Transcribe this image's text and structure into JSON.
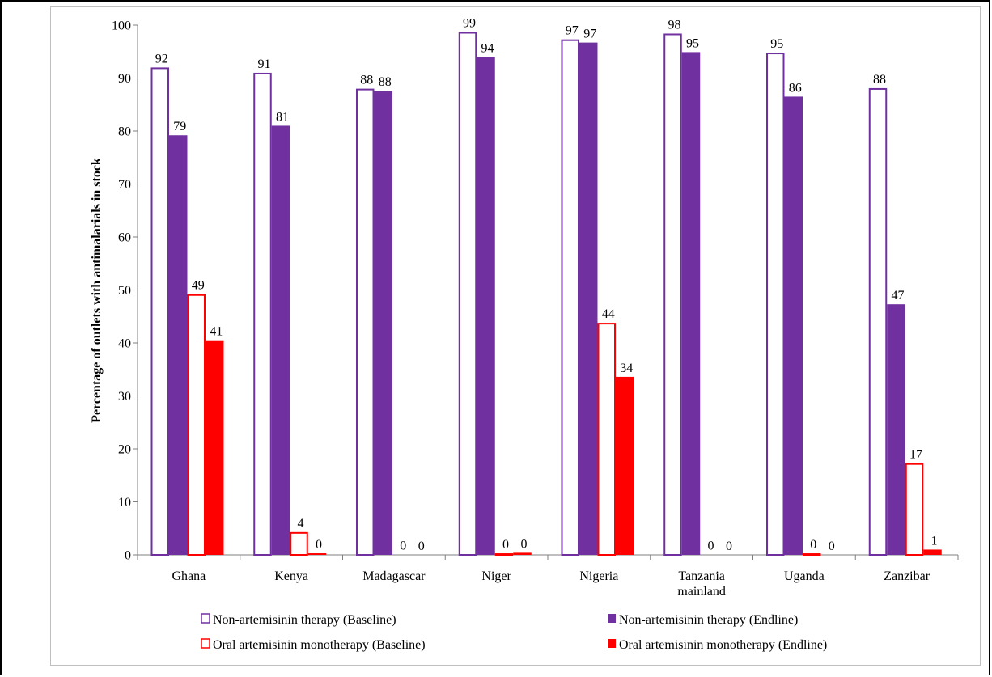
{
  "chart_data": {
    "type": "bar",
    "ylabel": "Percentage of outlets with antimalarials  in stock",
    "xlabel": "",
    "ylim": [
      0,
      100
    ],
    "yticks": [
      0,
      10,
      20,
      30,
      40,
      50,
      60,
      70,
      80,
      90,
      100
    ],
    "categories": [
      [
        "Ghana"
      ],
      [
        "Kenya"
      ],
      [
        "Madagascar"
      ],
      [
        "Niger"
      ],
      [
        "Nigeria"
      ],
      [
        "Tanzania",
        "mainland"
      ],
      [
        "Uganda"
      ],
      [
        "Zanzibar"
      ]
    ],
    "series": [
      {
        "name": "Non-artemisinin therapy (Baseline)",
        "style": "outline",
        "color": "#7030a0",
        "values": [
          92,
          91,
          88,
          98.7,
          97.3,
          98.4,
          94.8,
          88.1
        ],
        "labels": [
          "92",
          "91",
          "88",
          "99",
          "97",
          "98",
          "95",
          "88"
        ]
      },
      {
        "name": "Non-artemisinin therapy (Endline)",
        "style": "filled",
        "color": "#7030a0",
        "values": [
          79.2,
          81,
          87.6,
          94,
          96.7,
          94.9,
          86.5,
          47.3
        ],
        "labels": [
          "79",
          "81",
          "88",
          "94",
          "97",
          "95",
          "86",
          "47"
        ]
      },
      {
        "name": "Oral artemisinin monotherapy (Baseline)",
        "style": "outline",
        "color": "#ff0000",
        "values": [
          49.2,
          4.3,
          0.1,
          0.3,
          43.8,
          0.1,
          0.3,
          17.3
        ],
        "labels": [
          "49",
          "4",
          "0",
          "0",
          "44",
          "0",
          "0",
          "17"
        ]
      },
      {
        "name": "Oral artemisinin monotherapy (Endline)",
        "style": "filled",
        "color": "#ff0000",
        "values": [
          40.5,
          0.3,
          0,
          0.4,
          33.6,
          0,
          0,
          1
        ],
        "labels": [
          "41",
          "0",
          "0",
          "0",
          "34",
          "0",
          "0",
          "1"
        ]
      }
    ],
    "legend_placement": "bottom",
    "grid": false
  }
}
